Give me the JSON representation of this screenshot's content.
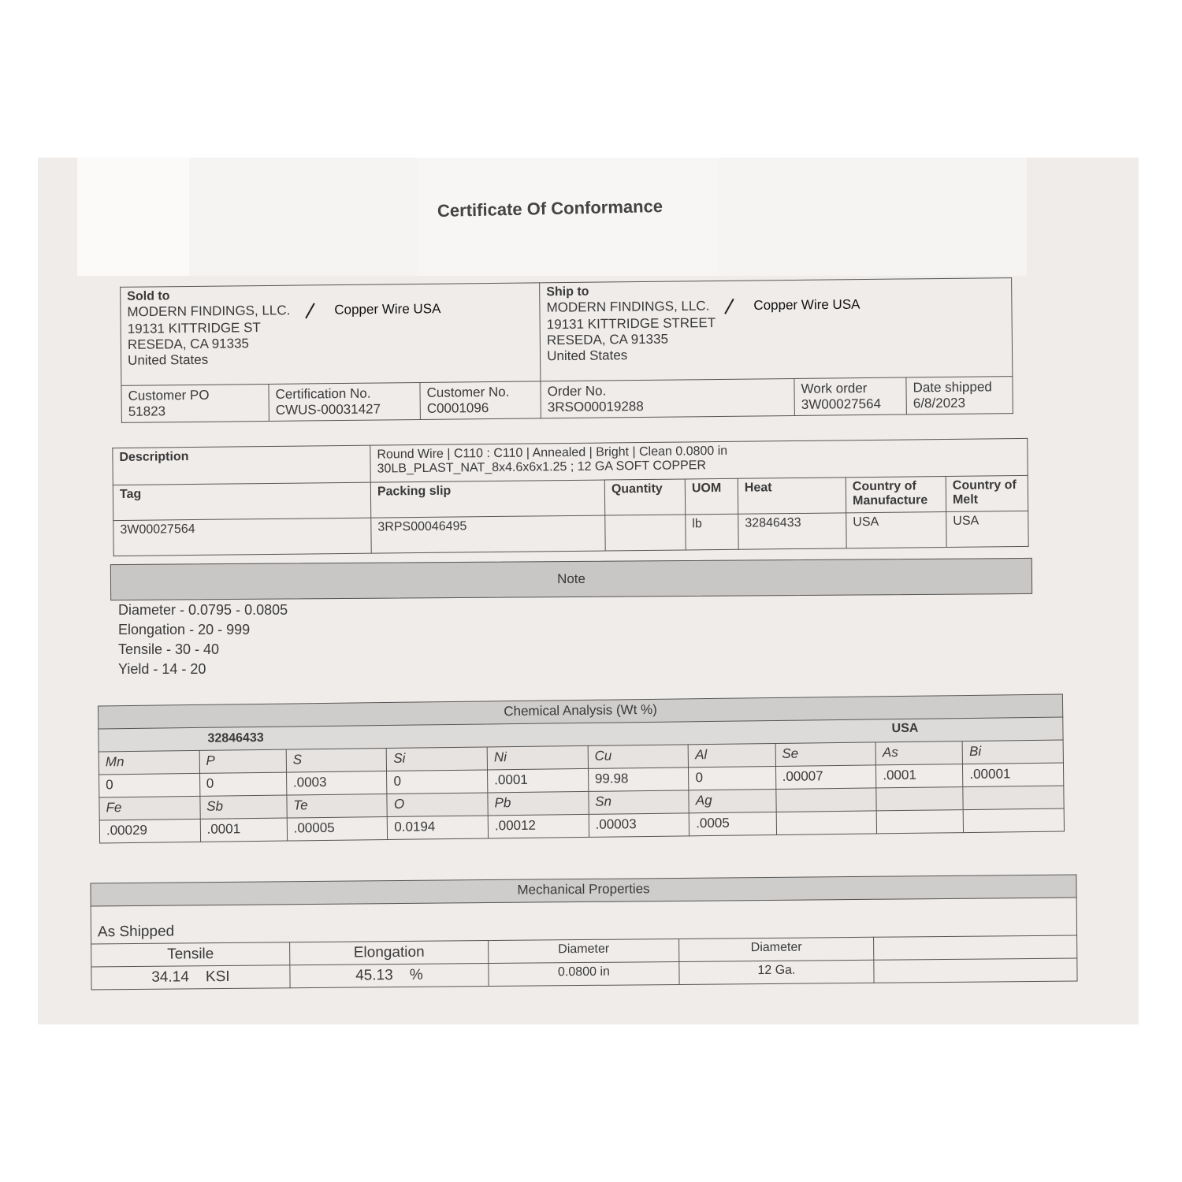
{
  "title": "Certificate Of Conformance",
  "sold_to": {
    "label": "Sold to",
    "name": "MODERN FINDINGS, LLC.",
    "annotation": "Copper Wire USA",
    "address": [
      "19131 KITTRIDGE ST",
      "RESEDA, CA 91335",
      "United States"
    ]
  },
  "ship_to": {
    "label": "Ship to",
    "name": "MODERN FINDINGS, LLC.",
    "annotation": "Copper Wire USA",
    "address": [
      "19131 KITTRIDGE STREET",
      "RESEDA, CA 91335",
      "United States"
    ]
  },
  "order_fields": [
    {
      "label": "Customer PO",
      "value": "51823"
    },
    {
      "label": "Certification No.",
      "value": "CWUS-00031427"
    },
    {
      "label": "Customer No.",
      "value": "C0001096"
    },
    {
      "label": "Order No.",
      "value": "3RSO00019288"
    },
    {
      "label": "Work order",
      "value": "3W00027564"
    },
    {
      "label": "Date shipped",
      "value": "6/8/2023"
    }
  ],
  "item": {
    "description_label": "Description",
    "description": [
      "Round Wire | C110 : C110 | Annealed | Bright | Clean  0.0800 in",
      "30LB_PLAST_NAT_8x4.6x6x1.25 ; 12 GA SOFT COPPER"
    ],
    "headers": [
      "Tag",
      "Packing slip",
      "Quantity",
      "UOM",
      "Heat",
      "Country of Manufacture",
      "Country of Melt"
    ],
    "values": [
      "3W00027564",
      "3RPS00046495",
      "",
      "lb",
      "32846433",
      "USA",
      "USA"
    ]
  },
  "note": {
    "label": "Note",
    "lines": [
      "Diameter - 0.0795 - 0.0805",
      "Elongation - 20 - 999",
      "Tensile - 30 - 40",
      "Yield - 14 - 20"
    ]
  },
  "chemical": {
    "title": "Chemical Analysis (Wt %)",
    "heat": "32846433",
    "country": "USA",
    "row1_elements": [
      "Mn",
      "P",
      "S",
      "Si",
      "Ni",
      "Cu",
      "Al",
      "Se",
      "As",
      "Bi"
    ],
    "row1_values": [
      "0",
      "0",
      ".0003",
      "0",
      ".0001",
      "99.98",
      "0",
      ".00007",
      ".0001",
      ".00001"
    ],
    "row2_elements": [
      "Fe",
      "Sb",
      "Te",
      "O",
      "Pb",
      "Sn",
      "Ag",
      "",
      "",
      ""
    ],
    "row2_values": [
      ".00029",
      ".0001",
      ".00005",
      "0.0194",
      ".00012",
      ".00003",
      ".0005",
      "",
      "",
      ""
    ]
  },
  "mechanical": {
    "title": "Mechanical Properties",
    "condition": "As Shipped",
    "headers": [
      "Tensile",
      "Elongation",
      "Diameter",
      "Diameter",
      ""
    ],
    "values": [
      "34.14    KSI",
      "45.13    %",
      "0.0800 in",
      "12 Ga.",
      ""
    ]
  }
}
